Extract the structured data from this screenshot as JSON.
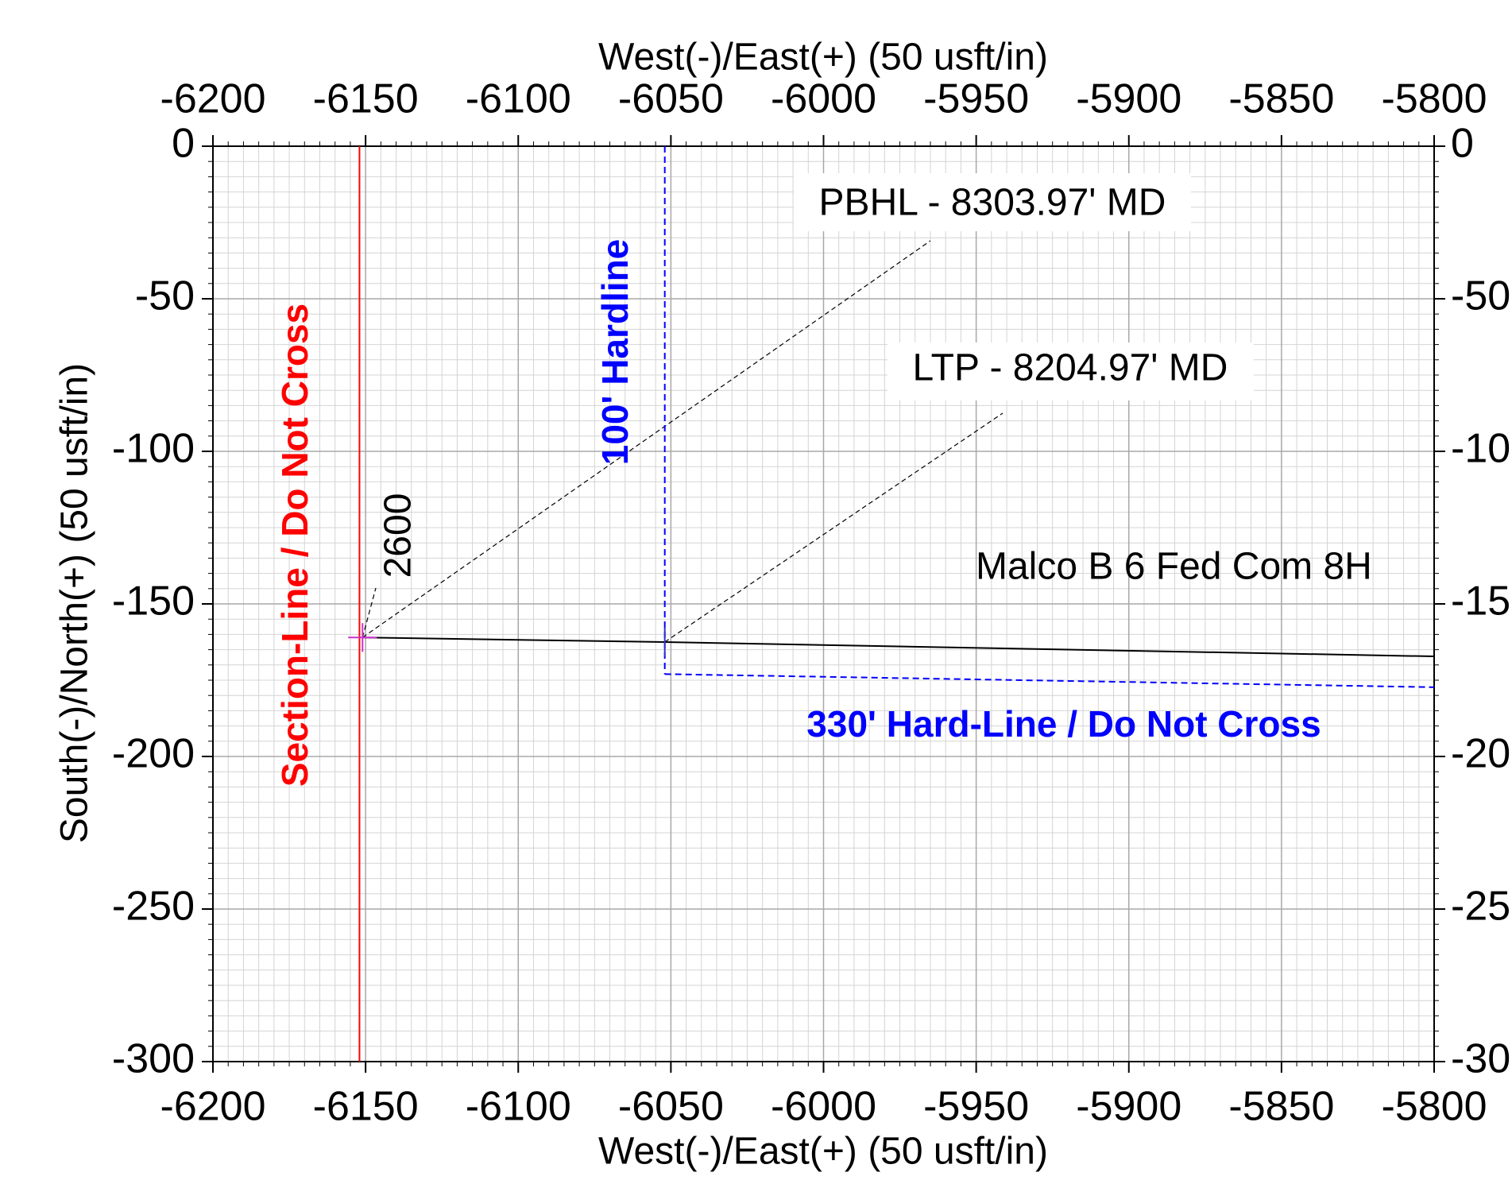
{
  "chart_data": {
    "type": "line",
    "x_label": "West(-)/East(+) (50 usft/in)",
    "y_label": "South(-)/North(+) (50 usft/in)",
    "xlim": [
      -6200,
      -5800
    ],
    "xticks": [
      -6200,
      -6150,
      -6100,
      -6050,
      -6000,
      -5950,
      -5900,
      -5850,
      -5800
    ],
    "ylim": [
      -300,
      0
    ],
    "yticks": [
      0,
      -50,
      -100,
      -150,
      -200,
      -250,
      -300
    ],
    "grid": true,
    "series": [
      {
        "name": "Malco B 6 Fed Com 8H",
        "color": "#000000",
        "dashed": false,
        "bold": false,
        "x": [
          -6151,
          -6052,
          -5800
        ],
        "values": [
          -161,
          -162.5,
          -167.2
        ]
      },
      {
        "name": "Section-Line / Do Not Cross",
        "color": "#ff0000",
        "dashed": false,
        "bold": true,
        "x": [
          -6152,
          -6152
        ],
        "values": [
          0,
          -300
        ]
      },
      {
        "name": "100' Hardline",
        "color": "#0000ff",
        "dashed": true,
        "bold": true,
        "x": [
          -6052,
          -6052
        ],
        "values": [
          0,
          -173
        ]
      },
      {
        "name": "330' Hard-Line / Do Not Cross",
        "color": "#0000ff",
        "dashed": true,
        "bold": true,
        "x": [
          -6052,
          -5800
        ],
        "values": [
          -173,
          -177.3
        ]
      }
    ],
    "annotations": [
      {
        "text": "PBHL - 8303.97' MD",
        "x": -6151,
        "y": -161
      },
      {
        "text": "LTP - 8204.97' MD",
        "x": -6052,
        "y": -162.5
      },
      {
        "text": "2600",
        "x": -6151,
        "y": -161
      }
    ]
  }
}
